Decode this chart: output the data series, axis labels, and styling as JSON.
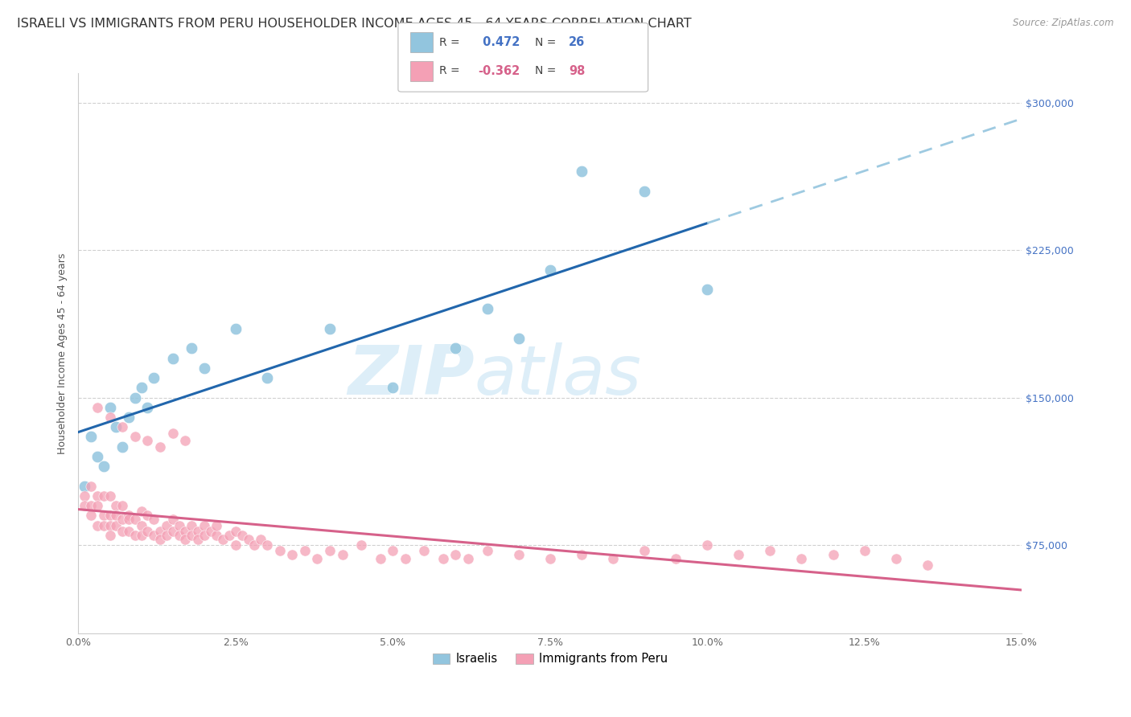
{
  "title": "ISRAELI VS IMMIGRANTS FROM PERU HOUSEHOLDER INCOME AGES 45 - 64 YEARS CORRELATION CHART",
  "source": "Source: ZipAtlas.com",
  "ylabel": "Householder Income Ages 45 - 64 years",
  "ytick_labels": [
    "$75,000",
    "$150,000",
    "$225,000",
    "$300,000"
  ],
  "ytick_values": [
    75000,
    150000,
    225000,
    300000
  ],
  "ymin": 30000,
  "ymax": 315000,
  "xmin": 0.0,
  "xmax": 0.15,
  "legend1_label": "Israelis",
  "legend2_label": "Immigrants from Peru",
  "r1": 0.472,
  "n1": 26,
  "r2": -0.362,
  "n2": 98,
  "blue_scatter_color": "#92c5de",
  "pink_scatter_color": "#f4a0b5",
  "blue_line_color": "#2166ac",
  "pink_line_color": "#d6618a",
  "blue_dashed_color": "#9ecae1",
  "watermark_color": "#ddeef8",
  "title_fontsize": 11.5,
  "axis_label_fontsize": 9,
  "tick_fontsize": 9,
  "israeli_x": [
    0.001,
    0.002,
    0.003,
    0.004,
    0.005,
    0.006,
    0.007,
    0.008,
    0.009,
    0.01,
    0.011,
    0.012,
    0.015,
    0.018,
    0.02,
    0.025,
    0.03,
    0.04,
    0.05,
    0.06,
    0.065,
    0.07,
    0.075,
    0.08,
    0.09,
    0.1
  ],
  "israeli_y": [
    105000,
    130000,
    120000,
    115000,
    145000,
    135000,
    125000,
    140000,
    150000,
    155000,
    145000,
    160000,
    170000,
    175000,
    165000,
    185000,
    160000,
    185000,
    155000,
    175000,
    195000,
    180000,
    215000,
    265000,
    255000,
    205000
  ],
  "peru_x": [
    0.001,
    0.001,
    0.002,
    0.002,
    0.002,
    0.003,
    0.003,
    0.003,
    0.004,
    0.004,
    0.004,
    0.005,
    0.005,
    0.005,
    0.005,
    0.006,
    0.006,
    0.006,
    0.007,
    0.007,
    0.007,
    0.008,
    0.008,
    0.008,
    0.009,
    0.009,
    0.01,
    0.01,
    0.01,
    0.011,
    0.011,
    0.012,
    0.012,
    0.013,
    0.013,
    0.014,
    0.014,
    0.015,
    0.015,
    0.016,
    0.016,
    0.017,
    0.017,
    0.018,
    0.018,
    0.019,
    0.019,
    0.02,
    0.02,
    0.021,
    0.022,
    0.022,
    0.023,
    0.024,
    0.025,
    0.025,
    0.026,
    0.027,
    0.028,
    0.029,
    0.03,
    0.032,
    0.034,
    0.036,
    0.038,
    0.04,
    0.042,
    0.045,
    0.048,
    0.05,
    0.052,
    0.055,
    0.058,
    0.06,
    0.062,
    0.065,
    0.07,
    0.075,
    0.08,
    0.085,
    0.09,
    0.095,
    0.1,
    0.105,
    0.11,
    0.115,
    0.12,
    0.125,
    0.13,
    0.135,
    0.003,
    0.005,
    0.007,
    0.009,
    0.011,
    0.013,
    0.015,
    0.017
  ],
  "peru_y": [
    100000,
    95000,
    105000,
    95000,
    90000,
    100000,
    95000,
    85000,
    100000,
    90000,
    85000,
    100000,
    90000,
    85000,
    80000,
    95000,
    90000,
    85000,
    95000,
    88000,
    82000,
    90000,
    88000,
    82000,
    88000,
    80000,
    92000,
    85000,
    80000,
    90000,
    82000,
    88000,
    80000,
    82000,
    78000,
    85000,
    80000,
    88000,
    82000,
    85000,
    80000,
    82000,
    78000,
    85000,
    80000,
    82000,
    78000,
    85000,
    80000,
    82000,
    80000,
    85000,
    78000,
    80000,
    82000,
    75000,
    80000,
    78000,
    75000,
    78000,
    75000,
    72000,
    70000,
    72000,
    68000,
    72000,
    70000,
    75000,
    68000,
    72000,
    68000,
    72000,
    68000,
    70000,
    68000,
    72000,
    70000,
    68000,
    70000,
    68000,
    72000,
    68000,
    75000,
    70000,
    72000,
    68000,
    70000,
    72000,
    68000,
    65000,
    145000,
    140000,
    135000,
    130000,
    128000,
    125000,
    132000,
    128000
  ]
}
